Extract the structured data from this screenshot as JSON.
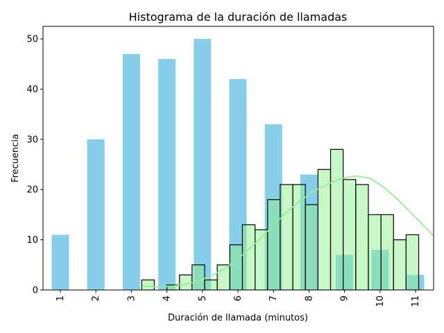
{
  "chart_data": {
    "type": "bar",
    "title": "Histograma de la duración de llamadas",
    "xlabel": "Duración de llamada (minutos)",
    "ylabel": "Frecuencia",
    "ylim": [
      0,
      52.5
    ],
    "grid": false,
    "legend": "none",
    "colors": {
      "counts": "#87CEEB",
      "histogram_fill": "#90EE90",
      "histogram_edge": "#000000",
      "kde": "#90EE90"
    },
    "categories": [
      "1",
      "2",
      "3",
      "4",
      "5",
      "6",
      "7",
      "8",
      "9",
      "10",
      "11"
    ],
    "yticks": [
      0,
      10,
      20,
      30,
      40,
      50
    ],
    "series": [
      {
        "values": [
          11,
          30,
          47,
          46,
          50,
          42,
          33,
          23,
          7,
          8,
          3
        ]
      }
    ],
    "histogram": {
      "x_start": 3.29,
      "bin_width": 0.3545,
      "counts": [
        2,
        0,
        1,
        3,
        5,
        2,
        5,
        9,
        13,
        12,
        18,
        21,
        21,
        17,
        24,
        28,
        22,
        21,
        15,
        15,
        10,
        11
      ]
    },
    "kde": {
      "x": [
        3.3,
        3.7,
        4.1,
        4.5,
        4.9,
        5.3,
        5.7,
        6.1,
        6.5,
        6.9,
        7.3,
        7.7,
        8.1,
        8.5,
        8.9,
        9.3,
        9.7,
        10.1,
        10.5,
        10.9,
        11.3,
        11.5
      ],
      "y": [
        0.8,
        0.6,
        0.7,
        1.1,
        1.8,
        3.0,
        4.6,
        6.8,
        9.4,
        12.2,
        15.0,
        17.5,
        19.5,
        21.0,
        22.2,
        22.7,
        22.3,
        20.5,
        18.0,
        15.2,
        12.3,
        10.8
      ]
    }
  }
}
